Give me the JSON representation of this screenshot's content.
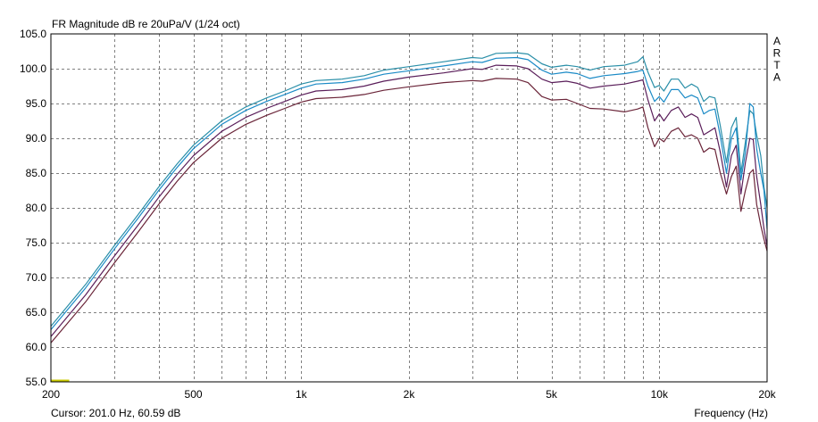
{
  "chart_data": {
    "type": "line",
    "title": "FR Magnitude dB re 20uPa/V (1/24 oct)",
    "xlabel": "Frequency (Hz)",
    "ylabel": "",
    "side_label": [
      "A",
      "R",
      "T",
      "A"
    ],
    "cursor_readout": "Cursor: 201.0 Hz, 60.59 dB",
    "x_scale": "log",
    "xlim": [
      200,
      20000
    ],
    "ylim": [
      55.0,
      105.0
    ],
    "grid": true,
    "x_ticks": [
      {
        "value": 200,
        "label": "200"
      },
      {
        "value": 500,
        "label": "500"
      },
      {
        "value": 1000,
        "label": "1k"
      },
      {
        "value": 2000,
        "label": "2k"
      },
      {
        "value": 5000,
        "label": "5k"
      },
      {
        "value": 10000,
        "label": "10k"
      },
      {
        "value": 20000,
        "label": "20k"
      }
    ],
    "y_ticks": [
      {
        "value": 55,
        "label": "55.0"
      },
      {
        "value": 60,
        "label": "60.0"
      },
      {
        "value": 65,
        "label": "65.0"
      },
      {
        "value": 70,
        "label": "70.0"
      },
      {
        "value": 75,
        "label": "75.0"
      },
      {
        "value": 80,
        "label": "80.0"
      },
      {
        "value": 85,
        "label": "85.0"
      },
      {
        "value": 90,
        "label": "90.0"
      },
      {
        "value": 95,
        "label": "95.0"
      },
      {
        "value": 100,
        "label": "100.0"
      },
      {
        "value": 105,
        "label": "105.0"
      }
    ],
    "marker": {
      "x": [
        200,
        225
      ],
      "y": 55.2,
      "color": "#c8c800"
    },
    "series": [
      {
        "color": "#2a8fa8",
        "points": [
          [
            200,
            63.0
          ],
          [
            250,
            69.0
          ],
          [
            300,
            74.5
          ],
          [
            350,
            79.0
          ],
          [
            400,
            83.0
          ],
          [
            450,
            86.3
          ],
          [
            500,
            89.0
          ],
          [
            600,
            92.5
          ],
          [
            700,
            94.5
          ],
          [
            800,
            95.8
          ],
          [
            900,
            96.8
          ],
          [
            1000,
            97.8
          ],
          [
            1100,
            98.3
          ],
          [
            1300,
            98.5
          ],
          [
            1500,
            99.0
          ],
          [
            1700,
            99.8
          ],
          [
            2000,
            100.3
          ],
          [
            2500,
            101.0
          ],
          [
            3000,
            101.6
          ],
          [
            3200,
            101.5
          ],
          [
            3500,
            102.2
          ],
          [
            4000,
            102.3
          ],
          [
            4300,
            102.1
          ],
          [
            4700,
            100.7
          ],
          [
            5000,
            100.2
          ],
          [
            5500,
            100.5
          ],
          [
            5900,
            100.3
          ],
          [
            6400,
            99.8
          ],
          [
            7000,
            100.3
          ],
          [
            8000,
            100.5
          ],
          [
            8700,
            101.0
          ],
          [
            9000,
            101.7
          ],
          [
            9300,
            99.5
          ],
          [
            9700,
            97.3
          ],
          [
            10000,
            97.6
          ],
          [
            10300,
            96.8
          ],
          [
            10800,
            98.5
          ],
          [
            11300,
            98.5
          ],
          [
            11800,
            97.2
          ],
          [
            12300,
            97.8
          ],
          [
            12800,
            97.3
          ],
          [
            13300,
            95.3
          ],
          [
            13800,
            96.0
          ],
          [
            14300,
            95.8
          ],
          [
            14800,
            91.8
          ],
          [
            15400,
            86.5
          ],
          [
            15900,
            91.5
          ],
          [
            16400,
            93.0
          ],
          [
            16900,
            85.0
          ],
          [
            17400,
            89.5
          ],
          [
            17900,
            94.0
          ],
          [
            18300,
            93.5
          ],
          [
            18700,
            90.5
          ],
          [
            19200,
            87.5
          ],
          [
            19600,
            83.0
          ],
          [
            20000,
            80.0
          ]
        ]
      },
      {
        "color": "#1a8ac6",
        "points": [
          [
            200,
            62.5
          ],
          [
            250,
            68.5
          ],
          [
            300,
            74.0
          ],
          [
            350,
            78.5
          ],
          [
            400,
            82.5
          ],
          [
            450,
            85.8
          ],
          [
            500,
            88.5
          ],
          [
            600,
            92.0
          ],
          [
            700,
            94.0
          ],
          [
            800,
            95.3
          ],
          [
            900,
            96.3
          ],
          [
            1000,
            97.2
          ],
          [
            1100,
            97.8
          ],
          [
            1300,
            98.0
          ],
          [
            1500,
            98.5
          ],
          [
            1700,
            99.2
          ],
          [
            2000,
            99.7
          ],
          [
            2500,
            100.4
          ],
          [
            3000,
            101.0
          ],
          [
            3200,
            100.9
          ],
          [
            3500,
            101.5
          ],
          [
            4000,
            101.6
          ],
          [
            4300,
            101.3
          ],
          [
            4700,
            99.8
          ],
          [
            5000,
            99.2
          ],
          [
            5500,
            99.5
          ],
          [
            5900,
            99.3
          ],
          [
            6400,
            98.6
          ],
          [
            7000,
            99.0
          ],
          [
            8000,
            99.3
          ],
          [
            8700,
            99.6
          ],
          [
            9000,
            99.8
          ],
          [
            9300,
            97.5
          ],
          [
            9700,
            95.3
          ],
          [
            10000,
            96.0
          ],
          [
            10300,
            95.2
          ],
          [
            10800,
            97.0
          ],
          [
            11300,
            97.0
          ],
          [
            11800,
            95.8
          ],
          [
            12300,
            96.2
          ],
          [
            12800,
            95.8
          ],
          [
            13300,
            93.5
          ],
          [
            13800,
            94.0
          ],
          [
            14300,
            94.2
          ],
          [
            14800,
            90.3
          ],
          [
            15400,
            85.0
          ],
          [
            15900,
            90.0
          ],
          [
            16400,
            91.5
          ],
          [
            16900,
            84.0
          ],
          [
            17400,
            88.0
          ],
          [
            17900,
            95.0
          ],
          [
            18300,
            94.5
          ],
          [
            18700,
            88.5
          ],
          [
            19200,
            85.0
          ],
          [
            19600,
            82.5
          ],
          [
            20000,
            77.0
          ]
        ]
      },
      {
        "color": "#5a1e5a",
        "points": [
          [
            200,
            61.5
          ],
          [
            250,
            67.5
          ],
          [
            300,
            73.0
          ],
          [
            350,
            77.5
          ],
          [
            400,
            81.5
          ],
          [
            450,
            84.8
          ],
          [
            500,
            87.5
          ],
          [
            600,
            91.0
          ],
          [
            700,
            93.0
          ],
          [
            800,
            94.3
          ],
          [
            900,
            95.3
          ],
          [
            1000,
            96.2
          ],
          [
            1100,
            96.8
          ],
          [
            1300,
            97.0
          ],
          [
            1500,
            97.5
          ],
          [
            1700,
            98.2
          ],
          [
            2000,
            98.8
          ],
          [
            2500,
            99.4
          ],
          [
            3000,
            100.0
          ],
          [
            3200,
            99.9
          ],
          [
            3500,
            100.5
          ],
          [
            4000,
            100.4
          ],
          [
            4300,
            100.0
          ],
          [
            4700,
            98.5
          ],
          [
            5000,
            98.0
          ],
          [
            5500,
            98.2
          ],
          [
            5900,
            97.9
          ],
          [
            6400,
            97.2
          ],
          [
            7000,
            97.5
          ],
          [
            8000,
            97.8
          ],
          [
            8700,
            98.2
          ],
          [
            9000,
            98.4
          ],
          [
            9300,
            95.5
          ],
          [
            9700,
            92.5
          ],
          [
            10000,
            93.5
          ],
          [
            10300,
            92.5
          ],
          [
            10800,
            94.0
          ],
          [
            11300,
            94.5
          ],
          [
            11800,
            93.0
          ],
          [
            12300,
            93.5
          ],
          [
            12800,
            93.0
          ],
          [
            13300,
            90.5
          ],
          [
            13800,
            91.0
          ],
          [
            14300,
            91.5
          ],
          [
            14800,
            88.0
          ],
          [
            15400,
            83.0
          ],
          [
            15900,
            87.5
          ],
          [
            16400,
            89.0
          ],
          [
            16900,
            82.0
          ],
          [
            17400,
            86.5
          ],
          [
            17900,
            90.0
          ],
          [
            18300,
            89.8
          ],
          [
            18700,
            84.5
          ],
          [
            19200,
            80.5
          ],
          [
            19600,
            77.0
          ],
          [
            20000,
            74.5
          ]
        ]
      },
      {
        "color": "#6a2438",
        "points": [
          [
            200,
            60.6
          ],
          [
            250,
            66.5
          ],
          [
            300,
            72.0
          ],
          [
            350,
            76.5
          ],
          [
            400,
            80.5
          ],
          [
            450,
            83.8
          ],
          [
            500,
            86.5
          ],
          [
            600,
            90.0
          ],
          [
            700,
            92.0
          ],
          [
            800,
            93.3
          ],
          [
            900,
            94.3
          ],
          [
            1000,
            95.2
          ],
          [
            1100,
            95.7
          ],
          [
            1300,
            95.9
          ],
          [
            1500,
            96.3
          ],
          [
            1700,
            96.9
          ],
          [
            2000,
            97.4
          ],
          [
            2500,
            98.0
          ],
          [
            3000,
            98.3
          ],
          [
            3200,
            98.2
          ],
          [
            3500,
            98.6
          ],
          [
            4000,
            98.5
          ],
          [
            4300,
            98.0
          ],
          [
            4700,
            96.0
          ],
          [
            5000,
            95.5
          ],
          [
            5500,
            95.6
          ],
          [
            5900,
            95.0
          ],
          [
            6400,
            94.3
          ],
          [
            7000,
            94.2
          ],
          [
            8000,
            93.8
          ],
          [
            8700,
            94.2
          ],
          [
            9000,
            94.5
          ],
          [
            9300,
            91.5
          ],
          [
            9700,
            88.8
          ],
          [
            10000,
            90.0
          ],
          [
            10300,
            89.5
          ],
          [
            10800,
            91.0
          ],
          [
            11300,
            91.5
          ],
          [
            11800,
            90.2
          ],
          [
            12300,
            90.5
          ],
          [
            12800,
            90.0
          ],
          [
            13300,
            88.0
          ],
          [
            13800,
            88.6
          ],
          [
            14300,
            88.4
          ],
          [
            14800,
            85.0
          ],
          [
            15400,
            82.0
          ],
          [
            15900,
            84.5
          ],
          [
            16400,
            86.0
          ],
          [
            16900,
            79.5
          ],
          [
            17400,
            82.5
          ],
          [
            17900,
            85.0
          ],
          [
            18300,
            85.5
          ],
          [
            18700,
            80.5
          ],
          [
            19200,
            77.5
          ],
          [
            19600,
            75.5
          ],
          [
            20000,
            73.8
          ]
        ]
      }
    ]
  }
}
